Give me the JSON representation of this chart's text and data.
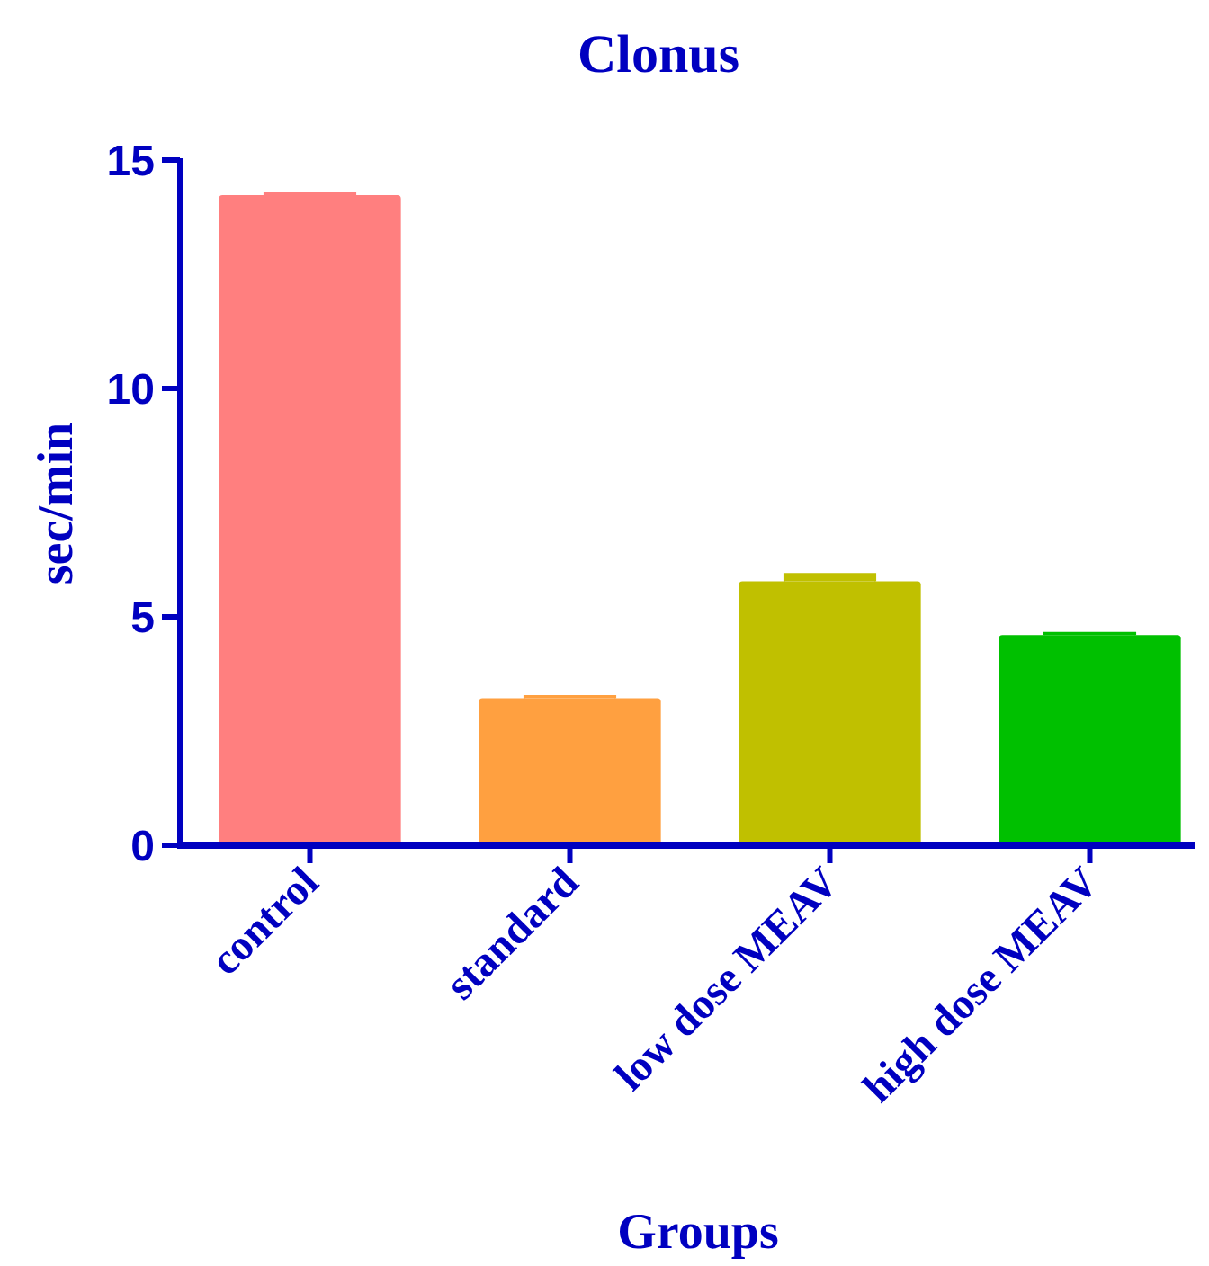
{
  "chart_data": {
    "type": "bar",
    "title": "Clonus",
    "xlabel": "Groups",
    "ylabel": "sec/min",
    "categories": [
      "control",
      "standard",
      "low dose MEAV",
      "high dose MEAV"
    ],
    "values": [
      14.23,
      3.22,
      5.78,
      4.6
    ],
    "colors": [
      "#ff7f7f",
      "#ffa040",
      "#c0c000",
      "#00c000"
    ],
    "errors": [
      [
        14.23,
        14.29
      ],
      [
        3.22,
        3.27
      ],
      [
        5.78,
        5.94
      ],
      [
        4.6,
        4.65
      ]
    ],
    "ylim": [
      0,
      15
    ],
    "yticks": [
      0,
      5,
      10,
      15
    ],
    "grid": false
  }
}
